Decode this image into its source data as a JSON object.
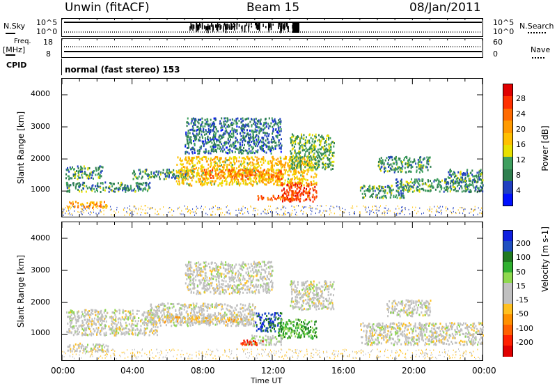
{
  "header": {
    "station": "Unwin (fitACF)",
    "beam": "Beam 15",
    "date": "08/Jan/2011"
  },
  "strip": {
    "nsky_label": "N.Sky",
    "nsearch_label": "N.Search",
    "nsky_ticks": [
      "10^5",
      "10^0"
    ],
    "nsearch_ticks": [
      "10^5",
      "10^0"
    ],
    "freq_label": "Freq.",
    "freq_unit": "[MHz]",
    "freq_ticks": [
      "18",
      "8"
    ],
    "nave_label": "Nave",
    "nave_ticks": [
      "60",
      "0"
    ],
    "cpid_label": "CPID",
    "cpid_value": "normal (fast stereo) 153"
  },
  "axes": {
    "ylabel": "Slant Range [km]",
    "xlabel": "Time UT",
    "yticks": [
      "4000",
      "3000",
      "2000",
      "1000"
    ],
    "xticks": [
      "00:00",
      "04:00",
      "08:00",
      "12:00",
      "16:00",
      "20:00",
      "00:00"
    ]
  },
  "colorbars": {
    "power": {
      "label": "Power [dB]",
      "ticks": [
        "28",
        "24",
        "20",
        "16",
        "12",
        "8",
        "4"
      ],
      "colors": [
        "#e00000",
        "#ff3000",
        "#ff6a00",
        "#ff9a00",
        "#ffc000",
        "#e8e000",
        "#3f9f5f",
        "#2f7f4f",
        "#2040c0",
        "#0010ff"
      ]
    },
    "velocity": {
      "label": "Velocity [m s-1]",
      "ticks": [
        "200",
        "100",
        "50",
        "15",
        "-15",
        "-50",
        "-100",
        "-200"
      ],
      "colors": [
        "#1020e0",
        "#2050c0",
        "#207a20",
        "#30b030",
        "#8fd84f",
        "#c0c0c0",
        "#c0c0c0",
        "#ffc020",
        "#ff9000",
        "#ff6000",
        "#ff2000",
        "#e00000"
      ]
    }
  },
  "chart_data": [
    {
      "type": "heatmap",
      "title": "Power",
      "xlabel": "Time UT",
      "ylabel": "Slant Range [km]",
      "xlim": [
        "00:00",
        "24:00"
      ],
      "ylim": [
        200,
        4500
      ],
      "zlabel": "Power [dB]",
      "zlim": [
        0,
        30
      ],
      "echo_regions": [
        {
          "t0": 0.2,
          "t1": 2.3,
          "r0": 1400,
          "r1": 1800,
          "level": 8
        },
        {
          "t0": 0.3,
          "t1": 2.6,
          "r0": 500,
          "r1": 700,
          "level": 20
        },
        {
          "t0": 0.2,
          "t1": 5.0,
          "r0": 1000,
          "r1": 1300,
          "level": 8
        },
        {
          "t0": 4.0,
          "t1": 7.5,
          "r0": 1400,
          "r1": 1700,
          "level": 8
        },
        {
          "t0": 6.5,
          "t1": 14.5,
          "r0": 1200,
          "r1": 2100,
          "level": 16
        },
        {
          "t0": 8.0,
          "t1": 12.5,
          "r0": 1400,
          "r1": 1700,
          "level": 22
        },
        {
          "t0": 12.5,
          "t1": 14.5,
          "r0": 700,
          "r1": 1300,
          "level": 26
        },
        {
          "t0": 11.0,
          "t1": 13.5,
          "r0": 750,
          "r1": 900,
          "level": 24
        },
        {
          "t0": 7.0,
          "t1": 12.5,
          "r0": 2200,
          "r1": 3300,
          "level": 6
        },
        {
          "t0": 13.0,
          "t1": 15.5,
          "r0": 1700,
          "r1": 2800,
          "level": 10
        },
        {
          "t0": 17.0,
          "t1": 19.5,
          "r0": 800,
          "r1": 1200,
          "level": 8
        },
        {
          "t0": 19.0,
          "t1": 24.0,
          "r0": 1000,
          "r1": 1400,
          "level": 8
        },
        {
          "t0": 18.0,
          "t1": 21.0,
          "r0": 1600,
          "r1": 2100,
          "level": 8
        },
        {
          "t0": 22.0,
          "t1": 24.0,
          "r0": 1300,
          "r1": 1700,
          "level": 8
        }
      ]
    },
    {
      "type": "heatmap",
      "title": "Velocity",
      "xlabel": "Time UT",
      "ylabel": "Slant Range [km]",
      "xlim": [
        "00:00",
        "24:00"
      ],
      "ylim": [
        200,
        4500
      ],
      "zlabel": "Velocity [m s-1]",
      "zlim": [
        -250,
        250
      ],
      "echo_regions": [
        {
          "t0": 0.2,
          "t1": 5.5,
          "r0": 1000,
          "r1": 1800,
          "level": 0
        },
        {
          "t0": 0.3,
          "t1": 2.6,
          "r0": 500,
          "r1": 750,
          "level": 0
        },
        {
          "t0": 5.0,
          "t1": 11.0,
          "r0": 1300,
          "r1": 2000,
          "level": 0
        },
        {
          "t0": 5.5,
          "t1": 10.5,
          "r0": 1400,
          "r1": 1600,
          "level": -50
        },
        {
          "t0": 11.0,
          "t1": 12.5,
          "r0": 1100,
          "r1": 1700,
          "level": 200
        },
        {
          "t0": 12.3,
          "t1": 14.5,
          "r0": 900,
          "r1": 1500,
          "level": 120
        },
        {
          "t0": 10.5,
          "t1": 12.5,
          "r0": 700,
          "r1": 1000,
          "level": 30
        },
        {
          "t0": 10.0,
          "t1": 11.5,
          "r0": 700,
          "r1": 850,
          "level": -200
        },
        {
          "t0": 7.0,
          "t1": 12.0,
          "r0": 2300,
          "r1": 3300,
          "level": 0
        },
        {
          "t0": 13.0,
          "t1": 15.5,
          "r0": 1800,
          "r1": 2700,
          "level": 0
        },
        {
          "t0": 17.0,
          "t1": 24.0,
          "r0": 700,
          "r1": 1400,
          "level": 0
        },
        {
          "t0": 18.5,
          "t1": 21.0,
          "r0": 1600,
          "r1": 2100,
          "level": 0
        }
      ]
    }
  ]
}
